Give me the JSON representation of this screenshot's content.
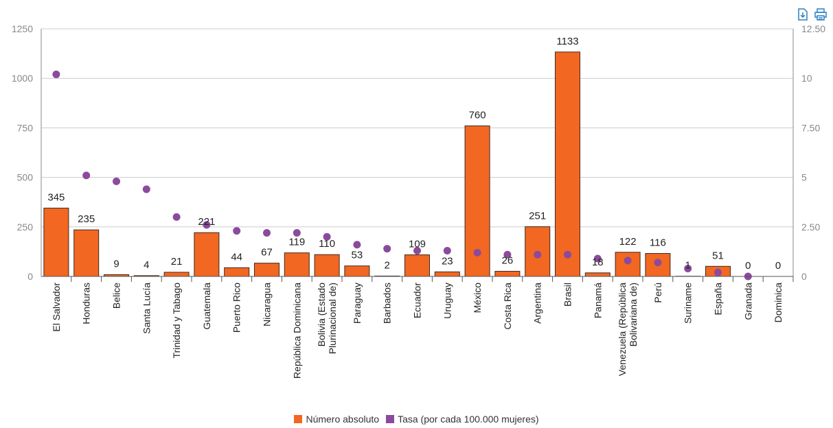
{
  "toolbar": {
    "download_icon": "download-icon",
    "print_icon": "print-icon"
  },
  "colors": {
    "bar": "#F26722",
    "bar_stroke": "#3a2a20",
    "dot": "#8B4B9C",
    "grid": "#cccccc",
    "axis": "#888888",
    "tick_text": "#888888"
  },
  "chart_data": {
    "type": "bar",
    "categories": [
      "El Salvador",
      "Honduras",
      "Belice",
      "Santa Lucía",
      "Trinidad y Tabago",
      "Guatemala",
      "Puerto Rico",
      "Nicaragua",
      "República Dominicana",
      "Bolivia (Estado Plurinacional de)",
      "Paraguay",
      "Barbados",
      "Ecuador",
      "Uruguay",
      "México",
      "Costa Rica",
      "Argentina",
      "Brasil",
      "Panamá",
      "Venezuela (República Bolivariana de)",
      "Perú",
      "Suriname",
      "España",
      "Granada",
      "Dominica"
    ],
    "category_lines": [
      [
        "El Salvador"
      ],
      [
        "Honduras"
      ],
      [
        "Belice"
      ],
      [
        "Santa Lucía"
      ],
      [
        "Trinidad y Tabago"
      ],
      [
        "Guatemala"
      ],
      [
        "Puerto Rico"
      ],
      [
        "Nicaragua"
      ],
      [
        "República Dominicana"
      ],
      [
        "Bolivia (Estado",
        "Plurinacional de)"
      ],
      [
        "Paraguay"
      ],
      [
        "Barbados"
      ],
      [
        "Ecuador"
      ],
      [
        "Uruguay"
      ],
      [
        "México"
      ],
      [
        "Costa Rica"
      ],
      [
        "Argentina"
      ],
      [
        "Brasil"
      ],
      [
        "Panamá"
      ],
      [
        "Venezuela (República",
        "Bolivariana de)"
      ],
      [
        "Perú"
      ],
      [
        "Suriname"
      ],
      [
        "España"
      ],
      [
        "Granada"
      ],
      [
        "Dominica"
      ]
    ],
    "series": [
      {
        "name": "Número absoluto",
        "type": "bar",
        "axis": "left",
        "values": [
          345,
          235,
          9,
          4,
          21,
          221,
          44,
          67,
          119,
          110,
          53,
          2,
          109,
          23,
          760,
          26,
          251,
          1133,
          18,
          122,
          116,
          1,
          51,
          0,
          0
        ]
      },
      {
        "name": "Tasa (por cada 100.000 mujeres)",
        "type": "scatter",
        "axis": "right",
        "values": [
          10.2,
          5.1,
          4.8,
          4.4,
          3.0,
          2.6,
          2.3,
          2.2,
          2.2,
          2.0,
          1.6,
          1.4,
          1.3,
          1.3,
          1.2,
          1.1,
          1.1,
          1.1,
          0.9,
          0.8,
          0.7,
          0.4,
          0.2,
          0.0,
          null
        ]
      }
    ],
    "y_left": {
      "ylim": [
        0,
        1250
      ],
      "ticks": [
        "0",
        "250",
        "500",
        "750",
        "1000",
        "1250"
      ],
      "tick_values": [
        0,
        250,
        500,
        750,
        1000,
        1250
      ]
    },
    "y_right": {
      "ylim": [
        0,
        12.5
      ],
      "ticks": [
        "0",
        "2.50",
        "5",
        "7.50",
        "10",
        "12.50"
      ],
      "tick_values": [
        0,
        2.5,
        5,
        7.5,
        10,
        12.5
      ]
    },
    "grid": true,
    "legend_position": "bottom-center"
  }
}
